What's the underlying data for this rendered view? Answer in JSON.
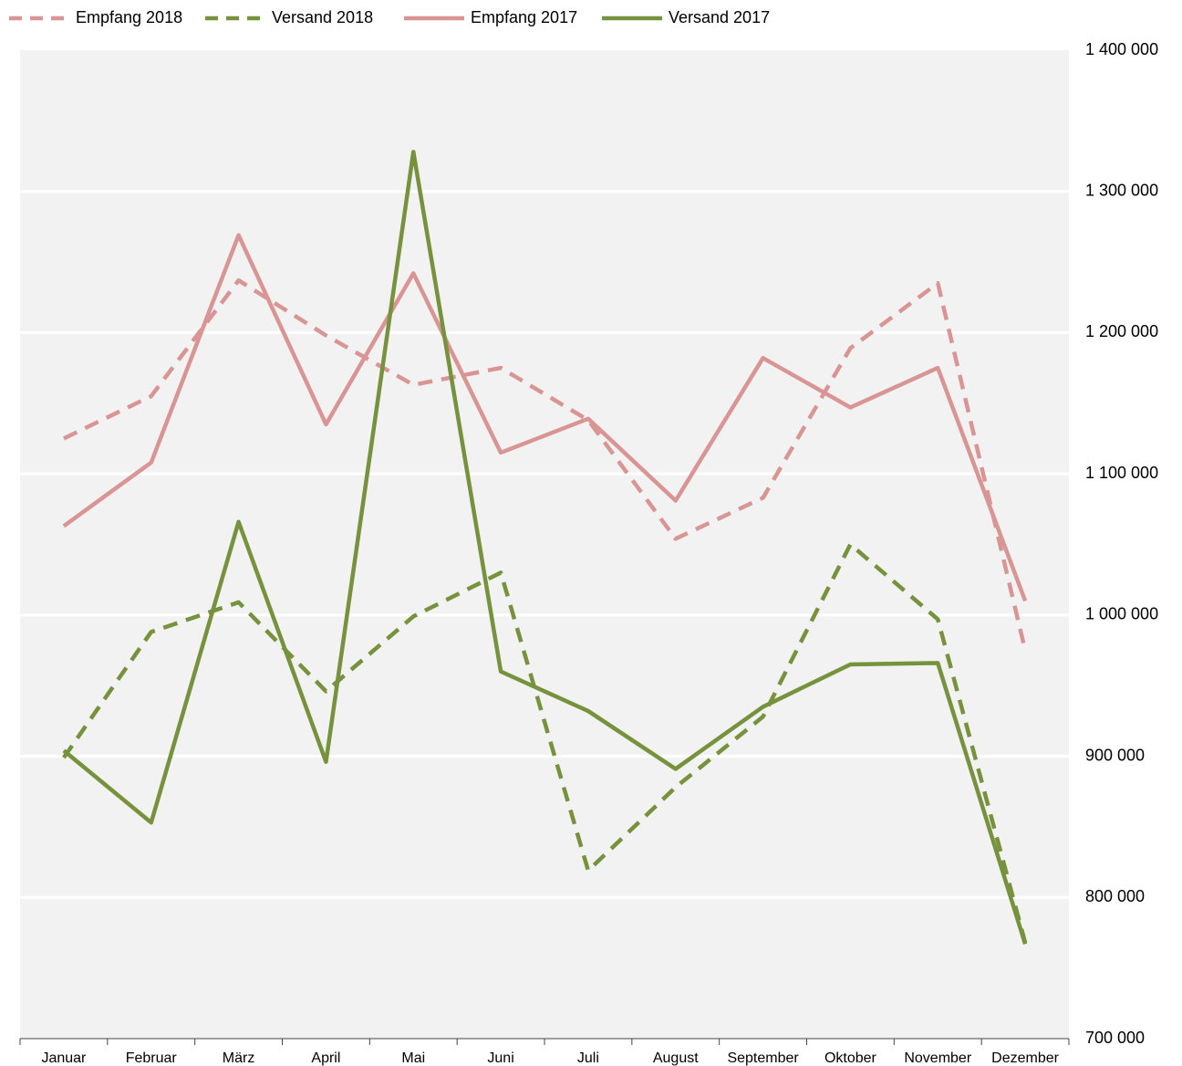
{
  "chart_data": {
    "type": "line",
    "categories": [
      "Januar",
      "Februar",
      "März",
      "April",
      "Mai",
      "Juni",
      "Juli",
      "August",
      "September",
      "Oktober",
      "November",
      "Dezember"
    ],
    "series": [
      {
        "name": "Empfang 2018",
        "color": "#d99594",
        "style": "dashed",
        "values": [
          1125000,
          1155000,
          1237000,
          1198000,
          1163000,
          1175000,
          1138000,
          1054000,
          1083000,
          1189000,
          1235000,
          975000
        ]
      },
      {
        "name": "Versand 2018",
        "color": "#76923c",
        "style": "dashed",
        "values": [
          899000,
          988000,
          1009000,
          946000,
          999000,
          1030000,
          819000,
          878000,
          928000,
          1050000,
          997000,
          768000
        ]
      },
      {
        "name": "Empfang 2017",
        "color": "#d99594",
        "style": "solid",
        "values": [
          1063000,
          1108000,
          1269000,
          1135000,
          1242000,
          1115000,
          1139000,
          1081000,
          1182000,
          1147000,
          1175000,
          1010000
        ]
      },
      {
        "name": "Versand 2017",
        "color": "#76923c",
        "style": "solid",
        "values": [
          904000,
          853000,
          1066000,
          896000,
          1328000,
          960000,
          932000,
          891000,
          935000,
          965000,
          966000,
          767000
        ]
      }
    ],
    "ylim": [
      700000,
      1400000
    ],
    "yticks": [
      {
        "value": 700000,
        "label": "700 000"
      },
      {
        "value": 800000,
        "label": "800 000"
      },
      {
        "value": 900000,
        "label": "900 000"
      },
      {
        "value": 1000000,
        "label": "1 000 000"
      },
      {
        "value": 1100000,
        "label": "1 100 000"
      },
      {
        "value": 1200000,
        "label": "1 200 000"
      },
      {
        "value": 1300000,
        "label": "1 300 000"
      },
      {
        "value": 1400000,
        "label": "1 400 000"
      }
    ],
    "grid": true,
    "legend": "top"
  }
}
